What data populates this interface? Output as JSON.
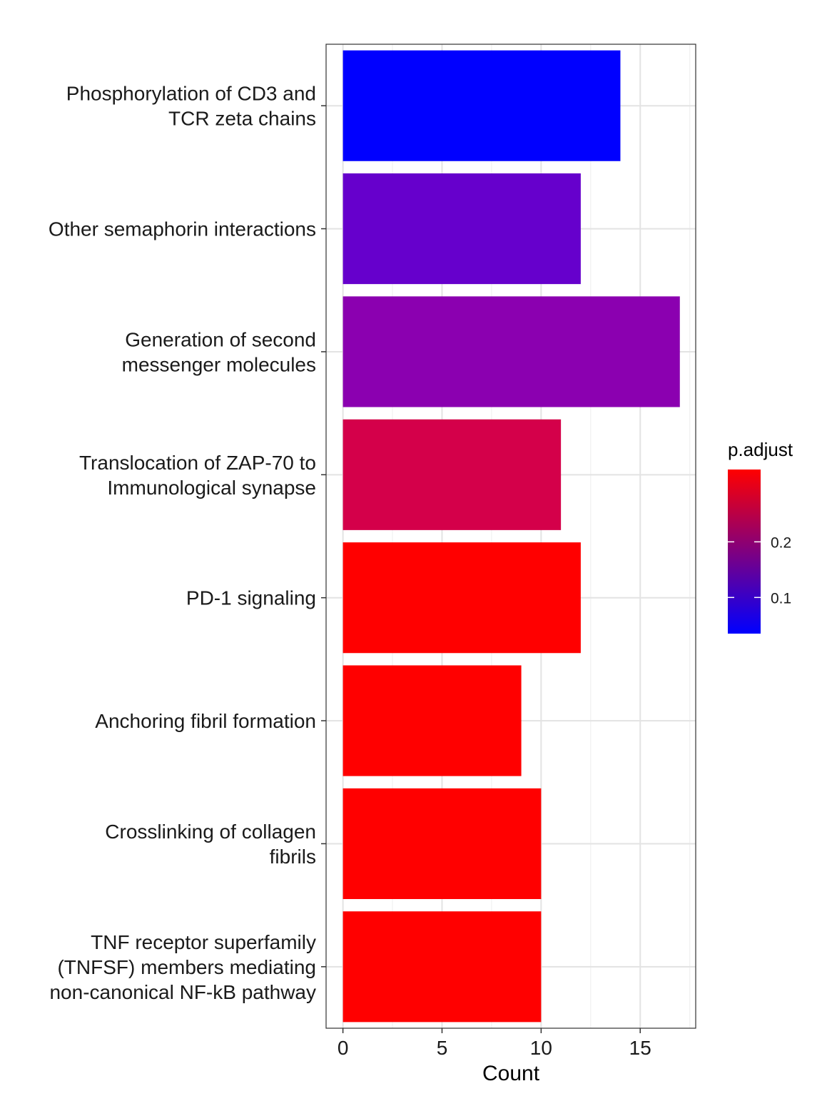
{
  "chart_data": {
    "type": "bar",
    "orientation": "horizontal",
    "categories": [
      [
        "Phosphorylation of CD3 and",
        "TCR zeta chains"
      ],
      [
        "Other semaphorin interactions"
      ],
      [
        "Generation of second",
        "messenger molecules"
      ],
      [
        "Translocation of ZAP-70 to",
        "Immunological synapse"
      ],
      [
        "PD-1 signaling"
      ],
      [
        "Anchoring fibril formation"
      ],
      [
        "Crosslinking of collagen",
        "fibrils"
      ],
      [
        "TNF receptor superfamily",
        "(TNFSF) members mediating",
        "non-canonical NF-kB pathway"
      ]
    ],
    "values": [
      14,
      12,
      17,
      11,
      12,
      9,
      10,
      10
    ],
    "p_adjust": [
      0.035,
      0.085,
      0.115,
      0.23,
      0.32,
      0.33,
      0.33,
      0.33
    ],
    "bar_colors": [
      "#0000FF",
      "#6600CC",
      "#8B00B0",
      "#D4004A",
      "#FF0000",
      "#FF0000",
      "#FF0000",
      "#FF0000"
    ],
    "xlabel": "Count",
    "ylabel": "",
    "xlim": [
      -0.85,
      17.8
    ],
    "x_ticks": [
      0,
      5,
      10,
      15
    ],
    "grid": true,
    "legend": {
      "title": "p.adjust",
      "placement": "right",
      "type": "colorbar",
      "range": [
        0.035,
        0.33
      ],
      "ticks": [
        0.1,
        0.2
      ],
      "tick_labels": [
        "0.1",
        "0.2"
      ],
      "color_low": "#0000FF",
      "color_high": "#FF0000"
    }
  }
}
